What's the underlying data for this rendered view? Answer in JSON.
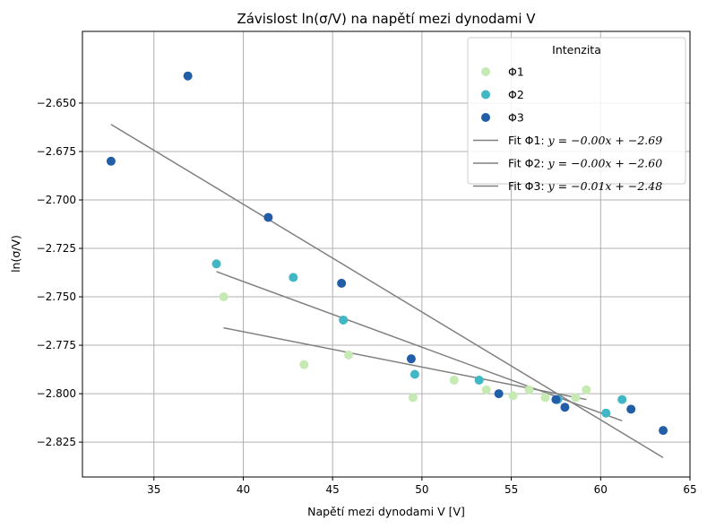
{
  "chart_data": {
    "type": "scatter",
    "title": "Závislost ln(σ/V) na napětí mezi dynodami V",
    "xlabel": "Napětí mezi dynodami V [V]",
    "ylabel": "ln(σ/V)",
    "xlim": [
      31,
      65
    ],
    "ylim": [
      -2.843,
      -2.613
    ],
    "xticks": [
      35,
      40,
      45,
      50,
      55,
      60,
      65
    ],
    "yticks": [
      -2.65,
      -2.675,
      -2.7,
      -2.725,
      -2.75,
      -2.775,
      -2.8,
      -2.825
    ],
    "xtick_labels": [
      "35",
      "40",
      "45",
      "50",
      "55",
      "60",
      "65"
    ],
    "ytick_labels": [
      "−2.650",
      "−2.675",
      "−2.700",
      "−2.725",
      "−2.750",
      "−2.775",
      "−2.800",
      "−2.825"
    ],
    "grid": true,
    "legend": {
      "title": "Intenzita",
      "position": "top-right"
    },
    "series": [
      {
        "name": "Φ1",
        "color": "#c7e9b4",
        "points": [
          [
            38.9,
            -2.75
          ],
          [
            43.4,
            -2.785
          ],
          [
            45.9,
            -2.78
          ],
          [
            49.5,
            -2.802
          ],
          [
            51.8,
            -2.793
          ],
          [
            53.6,
            -2.798
          ],
          [
            55.1,
            -2.801
          ],
          [
            56.0,
            -2.798
          ],
          [
            56.9,
            -2.802
          ],
          [
            58.6,
            -2.802
          ],
          [
            59.2,
            -2.798
          ]
        ]
      },
      {
        "name": "Φ2",
        "color": "#41b6c4",
        "points": [
          [
            38.5,
            -2.733
          ],
          [
            42.8,
            -2.74
          ],
          [
            45.6,
            -2.762
          ],
          [
            49.6,
            -2.79
          ],
          [
            53.2,
            -2.793
          ],
          [
            57.6,
            -2.803
          ],
          [
            60.3,
            -2.81
          ],
          [
            61.2,
            -2.803
          ]
        ]
      },
      {
        "name": "Φ3",
        "color": "#225ea8",
        "points": [
          [
            32.6,
            -2.68
          ],
          [
            36.9,
            -2.636
          ],
          [
            41.4,
            -2.709
          ],
          [
            45.5,
            -2.743
          ],
          [
            49.4,
            -2.782
          ],
          [
            54.3,
            -2.8
          ],
          [
            57.5,
            -2.803
          ],
          [
            58.0,
            -2.807
          ],
          [
            61.7,
            -2.808
          ],
          [
            63.5,
            -2.819
          ]
        ]
      }
    ],
    "fits": [
      {
        "name": "Fit Φ1: y = −0.00x + −2.69",
        "label_prefix": "Fit Φ1: ",
        "label_eq": "y = −0.00x + −2.69",
        "color": "#808080",
        "x": [
          38.9,
          59.2
        ],
        "y": [
          -2.766,
          -2.803
        ]
      },
      {
        "name": "Fit Φ2: y = −0.00x + −2.60",
        "label_prefix": "Fit Φ2: ",
        "label_eq": "y = −0.00x + −2.60",
        "color": "#808080",
        "x": [
          38.5,
          61.2
        ],
        "y": [
          -2.737,
          -2.814
        ]
      },
      {
        "name": "Fit Φ3: y = −0.01x + −2.48",
        "label_prefix": "Fit Φ3: ",
        "label_eq": "y = −0.01x + −2.48",
        "color": "#808080",
        "x": [
          32.6,
          63.5
        ],
        "y": [
          -2.661,
          -2.833
        ]
      }
    ]
  }
}
